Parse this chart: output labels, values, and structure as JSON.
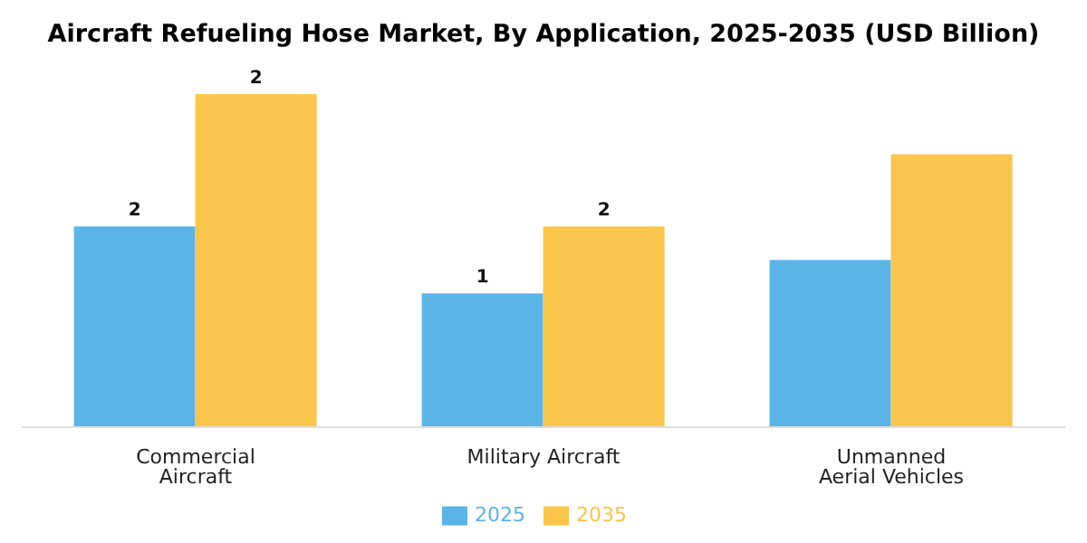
{
  "chart_data": {
    "type": "bar",
    "title": "Aircraft Refueling Hose Market, By Application, 2025-2035 (USD Billion)",
    "categories": [
      "Commercial Aircraft",
      "Military Aircraft",
      "Unmanned Aerial Vehicles"
    ],
    "legend": "bottom",
    "tick_labels": "x",
    "series": [
      {
        "name": "2025",
        "color": "#5ab4e8",
        "values": [
          1.5,
          1.0,
          1.25
        ],
        "value_labels": [
          "2",
          "1",
          null
        ]
      },
      {
        "name": "2035",
        "color": "#f9c54b",
        "values": [
          2.49,
          1.5,
          2.04
        ],
        "value_labels": [
          "2",
          "2",
          null
        ]
      }
    ]
  }
}
